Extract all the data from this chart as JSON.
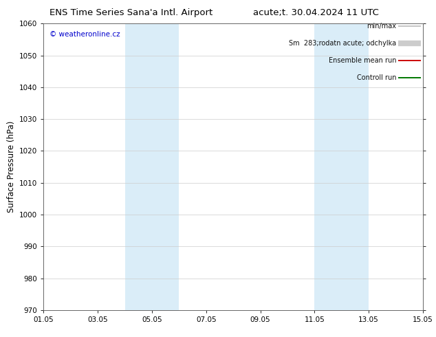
{
  "title_left": "ENS Time Series Sana'a Intl. Airport",
  "title_right": "acute;t. 30.04.2024 11 UTC",
  "ylabel": "Surface Pressure (hPa)",
  "ylim": [
    970,
    1060
  ],
  "yticks": [
    970,
    980,
    990,
    1000,
    1010,
    1020,
    1030,
    1040,
    1050,
    1060
  ],
  "xlim_start": 0,
  "xlim_end": 14,
  "xtick_positions": [
    0,
    2,
    4,
    6,
    8,
    10,
    12,
    14
  ],
  "xtick_labels": [
    "01.05",
    "03.05",
    "05.05",
    "07.05",
    "09.05",
    "11.05",
    "13.05",
    "15.05"
  ],
  "shade_bands": [
    {
      "x_start": 3.0,
      "x_end": 5.0
    },
    {
      "x_start": 10.0,
      "x_end": 12.0
    }
  ],
  "shade_color": "#daedf8",
  "bg_color": "#ffffff",
  "watermark": "© weatheronline.cz",
  "legend_items": [
    {
      "label": "min/max",
      "color": "#bbbbbb",
      "lw": 1.2
    },
    {
      "label": "Sm  283;rodatn acute; odchylka",
      "color": "#cccccc",
      "lw": 6.0
    },
    {
      "label": "Ensemble mean run",
      "color": "#cc0000",
      "lw": 1.4
    },
    {
      "label": "Controll run",
      "color": "#007700",
      "lw": 1.4
    }
  ],
  "title_fontsize": 9.5,
  "ylabel_fontsize": 8.5,
  "tick_fontsize": 7.5,
  "watermark_fontsize": 7.5,
  "legend_fontsize": 7.0
}
